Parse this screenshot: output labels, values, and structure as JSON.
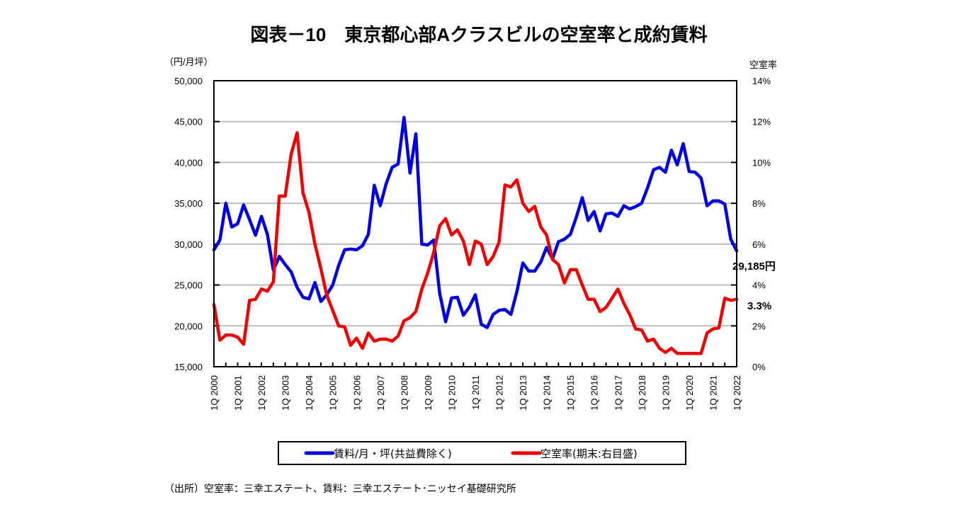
{
  "chart_data": {
    "type": "line",
    "title": "図表－10　東京都心部Aクラスビルの空室率と成約賃料",
    "y_left_label": "（円/月坪）",
    "y_right_label": "空室率",
    "y_left_range": [
      15000,
      50000
    ],
    "y_right_range": [
      0,
      14
    ],
    "y_left_ticks": [
      "50,000",
      "45,000",
      "40,000",
      "35,000",
      "30,000",
      "25,000",
      "20,000",
      "15,000"
    ],
    "y_right_ticks": [
      "14%",
      "12%",
      "10%",
      "8%",
      "6%",
      "4%",
      "2%",
      "0%"
    ],
    "x_tick_labels": [
      "1Q 2000",
      "1Q 2001",
      "1Q 2002",
      "1Q 2003",
      "1Q 2004",
      "1Q 2005",
      "1Q 2006",
      "1Q 2007",
      "1Q 2008",
      "1Q 2009",
      "1Q 2010",
      "1Q 2011",
      "1Q 2012",
      "1Q 2013",
      "1Q 2014",
      "1Q 2015",
      "1Q 2016",
      "1Q 2017",
      "1Q 2018",
      "1Q 2019",
      "1Q 2020",
      "1Q 2021",
      "1Q 2022"
    ],
    "x_start": "1Q 2000",
    "x_end": "1Q 2022",
    "x_frequency": "quarterly",
    "grid": true,
    "legend_position": "bottom",
    "series": [
      {
        "name": "賃料/月・坪(共益費除く)",
        "axis": "left",
        "color": "#0000dd",
        "values": [
          29300,
          30500,
          35000,
          32100,
          32500,
          34800,
          33000,
          31100,
          33400,
          31200,
          26800,
          28500,
          27500,
          26600,
          24700,
          23500,
          23300,
          25300,
          23000,
          23800,
          25000,
          27400,
          29300,
          29400,
          29300,
          29800,
          31200,
          37200,
          34700,
          37400,
          39400,
          39800,
          45500,
          38700,
          43500,
          30000,
          29900,
          30500,
          24000,
          20500,
          23400,
          23500,
          21300,
          22300,
          23800,
          20200,
          19800,
          21400,
          21900,
          22000,
          21400,
          24200,
          27700,
          26700,
          26700,
          27800,
          29600,
          28200,
          30300,
          30600,
          31200,
          33300,
          35700,
          32900,
          34000,
          31600,
          33700,
          33800,
          33400,
          34700,
          34300,
          34600,
          35000,
          36900,
          39100,
          39400,
          38800,
          41500,
          39700,
          42300,
          38900,
          38800,
          38100,
          34700,
          35300,
          35300,
          34900,
          30600,
          29185
        ]
      },
      {
        "name": "空室率(期末:右目盛)",
        "axis": "right",
        "color": "#ee0000",
        "values": [
          3.05,
          1.3,
          1.55,
          1.55,
          1.45,
          1.1,
          3.25,
          3.3,
          3.8,
          3.7,
          4.15,
          8.35,
          8.35,
          10.4,
          11.45,
          8.5,
          7.55,
          6.0,
          4.8,
          3.5,
          2.75,
          2.0,
          1.95,
          1.05,
          1.4,
          0.9,
          1.65,
          1.25,
          1.35,
          1.35,
          1.25,
          1.5,
          2.25,
          2.4,
          2.7,
          3.8,
          4.6,
          5.6,
          6.9,
          7.25,
          6.45,
          6.7,
          6.15,
          5.0,
          6.15,
          6.0,
          5.0,
          5.4,
          6.1,
          8.9,
          8.8,
          9.15,
          8.0,
          7.6,
          7.85,
          6.85,
          6.45,
          5.25,
          5.0,
          4.1,
          4.75,
          4.75,
          4.0,
          3.3,
          3.3,
          2.7,
          2.9,
          3.35,
          3.8,
          3.1,
          2.55,
          1.85,
          1.8,
          1.25,
          1.35,
          0.9,
          0.7,
          0.9,
          0.65,
          0.65,
          0.65,
          0.65,
          0.65,
          1.65,
          1.85,
          1.9,
          3.35,
          3.25,
          3.3
        ]
      }
    ],
    "annotations": [
      {
        "series": 0,
        "text": "29,185円"
      },
      {
        "series": 1,
        "text": "3.3%"
      }
    ]
  },
  "source_note": "（出所）空室率：三幸エステート、賃料：三幸エステート･ニッセイ基礎研究所"
}
